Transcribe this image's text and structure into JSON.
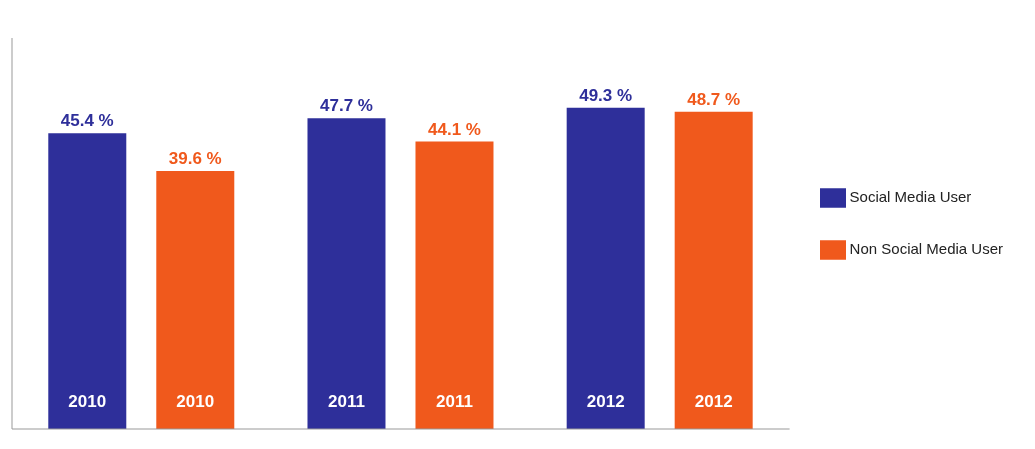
{
  "chart_data": {
    "type": "bar",
    "categories": [
      "2010",
      "2011",
      "2012"
    ],
    "series": [
      {
        "name": "Social Media User",
        "color": "#2e2f9a",
        "values": [
          45.4,
          47.7,
          49.3
        ],
        "value_labels": [
          "45.4 %",
          "47.7 %",
          "49.3 %"
        ]
      },
      {
        "name": "Non Social Media User",
        "color": "#f0591c",
        "values": [
          39.6,
          44.1,
          48.7
        ],
        "value_labels": [
          "39.6 %",
          "44.1 %",
          "48.7 %"
        ]
      }
    ],
    "grid": false,
    "legend": "right"
  }
}
